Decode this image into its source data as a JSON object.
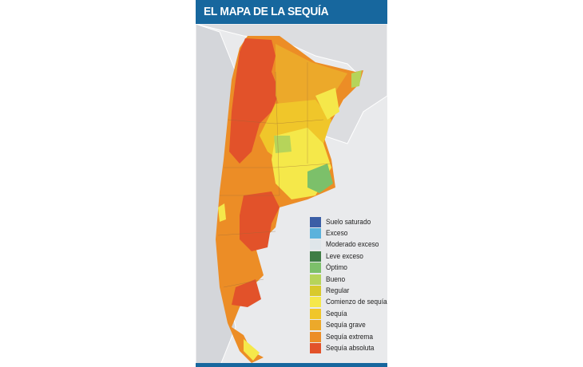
{
  "title": "EL MAPA DE LA SEQUÍA",
  "colors": {
    "title_bar": "#17679e",
    "background": "#e9eaec"
  },
  "legend": [
    {
      "label": "Suelo saturado",
      "color": "#3b5ea6"
    },
    {
      "label": "Exceso",
      "color": "#5bb2dc"
    },
    {
      "label": "Moderado exceso",
      "color": "#dfe6ea"
    },
    {
      "label": "Leve exceso",
      "color": "#3f7d45"
    },
    {
      "label": "Óptimo",
      "color": "#7cc06a"
    },
    {
      "label": "Bueno",
      "color": "#b6d45a"
    },
    {
      "label": "Regular",
      "color": "#d8c92c"
    },
    {
      "label": "Comienzo de sequía",
      "color": "#f5e84a"
    },
    {
      "label": "Sequía",
      "color": "#f0c62a"
    },
    {
      "label": "Sequía grave",
      "color": "#eca92a"
    },
    {
      "label": "Sequía extrema",
      "color": "#ec8d26"
    },
    {
      "label": "Sequía absoluta",
      "color": "#e2522a"
    }
  ]
}
